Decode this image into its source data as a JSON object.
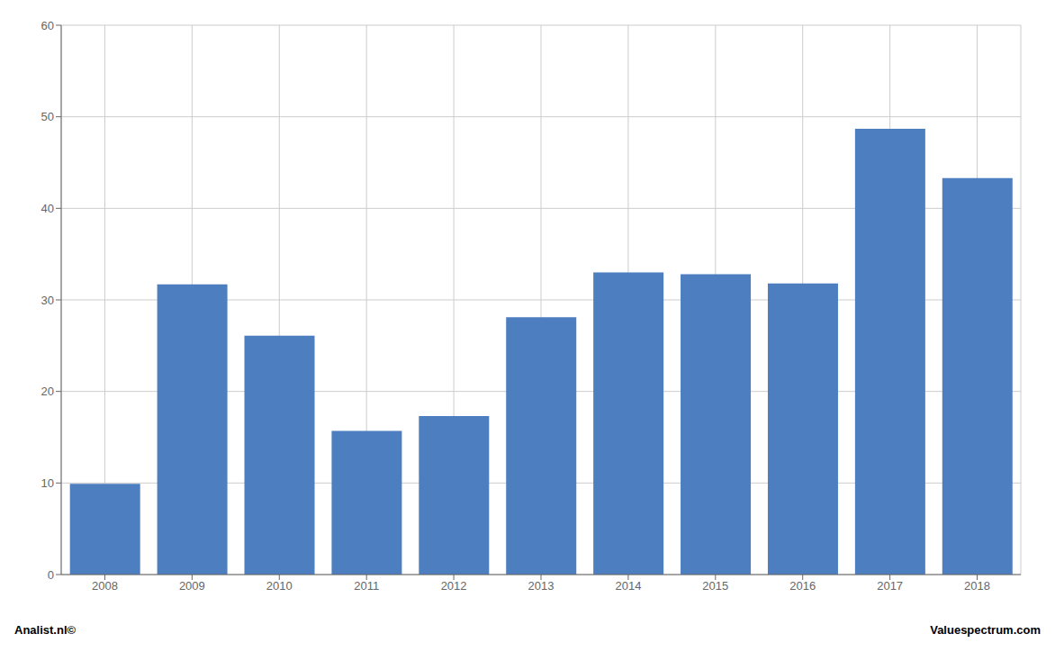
{
  "chart_data": {
    "type": "bar",
    "categories": [
      "2008",
      "2009",
      "2010",
      "2011",
      "2012",
      "2013",
      "2014",
      "2015",
      "2016",
      "2017",
      "2018"
    ],
    "values": [
      9.9,
      31.7,
      26.1,
      15.7,
      17.3,
      28.1,
      33.0,
      32.8,
      31.8,
      48.7,
      43.3
    ],
    "color": "#4d7ebf",
    "ylim": [
      0,
      60
    ],
    "yticks": [
      0,
      10,
      20,
      30,
      40,
      50,
      60
    ],
    "grid": true,
    "annotations": [
      "Analist.nl©",
      "Valuespectrum.com"
    ]
  }
}
